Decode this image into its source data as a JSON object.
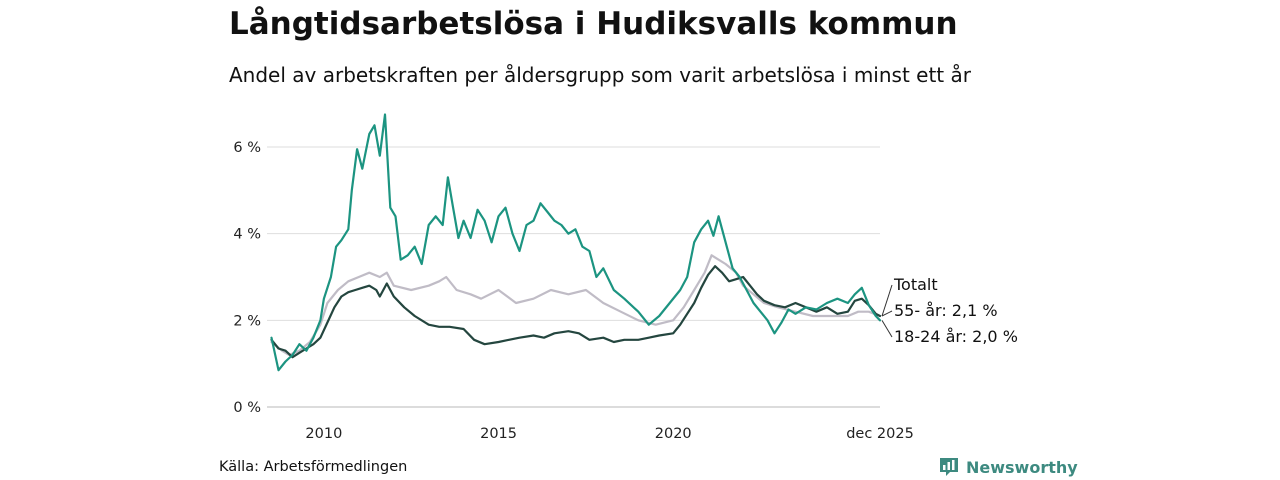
{
  "title": "Långtidsarbetslösa i Hudiksvalls kommun",
  "subtitle": "Andel av arbetskraften per åldersgrupp som varit arbetslösa i minst ett år",
  "source": "Källa: Arbetsförmedlingen",
  "brand": {
    "name": "Newsworthy",
    "icon": "bar-chart-speech-bubble-icon",
    "color": "#3d8a80"
  },
  "chart_data": {
    "type": "line",
    "xlim": [
      2008.4,
      2025.92
    ],
    "ylim": [
      0,
      6.9
    ],
    "grid": true,
    "x_ticks": [
      {
        "value": 2010,
        "label": "2010"
      },
      {
        "value": 2015,
        "label": "2015"
      },
      {
        "value": 2020,
        "label": "2020"
      },
      {
        "value": 2025.92,
        "label": "dec 2025"
      }
    ],
    "y_ticks": [
      {
        "value": 0,
        "label": "0 %"
      },
      {
        "value": 2,
        "label": "2 %"
      },
      {
        "value": 4,
        "label": "4 %"
      },
      {
        "value": 6,
        "label": "6 %"
      }
    ],
    "series": [
      {
        "name": "55- år",
        "end_label": "55- år: 2,1 %",
        "color": "#c0bcc6",
        "x": [
          2008.5,
          2008.8,
          2009.0,
          2009.3,
          2009.6,
          2009.9,
          2010.1,
          2010.4,
          2010.7,
          2011.0,
          2011.3,
          2011.6,
          2011.8,
          2012.0,
          2012.5,
          2013.0,
          2013.3,
          2013.5,
          2013.8,
          2014.2,
          2014.5,
          2015.0,
          2015.5,
          2016.0,
          2016.5,
          2017.0,
          2017.5,
          2018.0,
          2018.5,
          2019.0,
          2019.5,
          2020.0,
          2020.3,
          2020.6,
          2020.9,
          2021.1,
          2021.3,
          2021.5,
          2021.8,
          2022.0,
          2022.3,
          2022.6,
          2023.0,
          2023.5,
          2024.0,
          2024.5,
          2025.0,
          2025.3,
          2025.6,
          2025.92
        ],
        "values": [
          1.5,
          1.3,
          1.2,
          1.3,
          1.5,
          1.9,
          2.4,
          2.7,
          2.9,
          3.0,
          3.1,
          3.0,
          3.1,
          2.8,
          2.7,
          2.8,
          2.9,
          3.0,
          2.7,
          2.6,
          2.5,
          2.7,
          2.4,
          2.5,
          2.7,
          2.6,
          2.7,
          2.4,
          2.2,
          2.0,
          1.9,
          2.0,
          2.3,
          2.7,
          3.1,
          3.5,
          3.4,
          3.3,
          3.1,
          2.8,
          2.6,
          2.4,
          2.3,
          2.2,
          2.1,
          2.1,
          2.1,
          2.2,
          2.2,
          2.1
        ]
      },
      {
        "name": "Totalt",
        "end_label": "Totalt",
        "color": "#24463f",
        "x": [
          2008.5,
          2008.7,
          2008.9,
          2009.1,
          2009.3,
          2009.5,
          2009.7,
          2009.9,
          2010.1,
          2010.3,
          2010.5,
          2010.7,
          2010.9,
          2011.1,
          2011.3,
          2011.5,
          2011.6,
          2011.8,
          2012.0,
          2012.3,
          2012.6,
          2013.0,
          2013.3,
          2013.6,
          2014.0,
          2014.3,
          2014.6,
          2015.0,
          2015.3,
          2015.6,
          2016.0,
          2016.3,
          2016.6,
          2017.0,
          2017.3,
          2017.6,
          2018.0,
          2018.3,
          2018.6,
          2019.0,
          2019.3,
          2019.6,
          2020.0,
          2020.2,
          2020.4,
          2020.6,
          2020.8,
          2021.0,
          2021.2,
          2021.4,
          2021.6,
          2021.8,
          2022.0,
          2022.2,
          2022.4,
          2022.6,
          2022.9,
          2023.2,
          2023.5,
          2023.8,
          2024.1,
          2024.4,
          2024.7,
          2025.0,
          2025.2,
          2025.4,
          2025.6,
          2025.8,
          2025.92
        ],
        "values": [
          1.55,
          1.35,
          1.3,
          1.15,
          1.25,
          1.35,
          1.45,
          1.6,
          1.95,
          2.3,
          2.55,
          2.65,
          2.7,
          2.75,
          2.8,
          2.7,
          2.55,
          2.85,
          2.55,
          2.3,
          2.1,
          1.9,
          1.85,
          1.85,
          1.8,
          1.55,
          1.45,
          1.5,
          1.55,
          1.6,
          1.65,
          1.6,
          1.7,
          1.75,
          1.7,
          1.55,
          1.6,
          1.5,
          1.55,
          1.55,
          1.6,
          1.65,
          1.7,
          1.9,
          2.15,
          2.4,
          2.75,
          3.05,
          3.25,
          3.1,
          2.9,
          2.95,
          3.0,
          2.8,
          2.6,
          2.45,
          2.35,
          2.3,
          2.4,
          2.3,
          2.2,
          2.3,
          2.15,
          2.2,
          2.45,
          2.5,
          2.35,
          2.15,
          2.1
        ]
      },
      {
        "name": "18-24 år",
        "end_label": "18-24 år: 2,0 %",
        "color": "#1c9481",
        "x": [
          2008.5,
          2008.7,
          2008.9,
          2009.1,
          2009.3,
          2009.5,
          2009.7,
          2009.9,
          2010.0,
          2010.2,
          2010.35,
          2010.5,
          2010.7,
          2010.8,
          2010.95,
          2011.1,
          2011.3,
          2011.45,
          2011.6,
          2011.75,
          2011.9,
          2012.05,
          2012.2,
          2012.4,
          2012.6,
          2012.8,
          2013.0,
          2013.2,
          2013.4,
          2013.55,
          2013.7,
          2013.85,
          2014.0,
          2014.2,
          2014.4,
          2014.6,
          2014.8,
          2015.0,
          2015.2,
          2015.4,
          2015.6,
          2015.8,
          2016.0,
          2016.2,
          2016.4,
          2016.6,
          2016.8,
          2017.0,
          2017.2,
          2017.4,
          2017.6,
          2017.8,
          2018.0,
          2018.3,
          2018.6,
          2019.0,
          2019.3,
          2019.6,
          2019.9,
          2020.2,
          2020.4,
          2020.6,
          2020.8,
          2021.0,
          2021.15,
          2021.3,
          2021.5,
          2021.7,
          2021.9,
          2022.1,
          2022.3,
          2022.5,
          2022.7,
          2022.9,
          2023.1,
          2023.3,
          2023.5,
          2023.8,
          2024.1,
          2024.4,
          2024.7,
          2025.0,
          2025.2,
          2025.4,
          2025.6,
          2025.8,
          2025.92
        ],
        "values": [
          1.6,
          0.85,
          1.05,
          1.2,
          1.45,
          1.3,
          1.6,
          2.0,
          2.5,
          3.0,
          3.7,
          3.85,
          4.1,
          5.0,
          5.95,
          5.5,
          6.3,
          6.5,
          5.8,
          6.75,
          4.6,
          4.4,
          3.4,
          3.5,
          3.7,
          3.3,
          4.2,
          4.4,
          4.2,
          5.3,
          4.6,
          3.9,
          4.3,
          3.9,
          4.55,
          4.3,
          3.8,
          4.4,
          4.6,
          4.0,
          3.6,
          4.2,
          4.3,
          4.7,
          4.5,
          4.3,
          4.2,
          4.0,
          4.1,
          3.7,
          3.6,
          3.0,
          3.2,
          2.7,
          2.5,
          2.2,
          1.9,
          2.1,
          2.4,
          2.7,
          3.0,
          3.8,
          4.1,
          4.3,
          3.95,
          4.4,
          3.8,
          3.2,
          3.0,
          2.7,
          2.4,
          2.2,
          2.0,
          1.7,
          1.95,
          2.25,
          2.15,
          2.3,
          2.25,
          2.4,
          2.5,
          2.4,
          2.6,
          2.75,
          2.35,
          2.1,
          2.0
        ]
      }
    ]
  }
}
